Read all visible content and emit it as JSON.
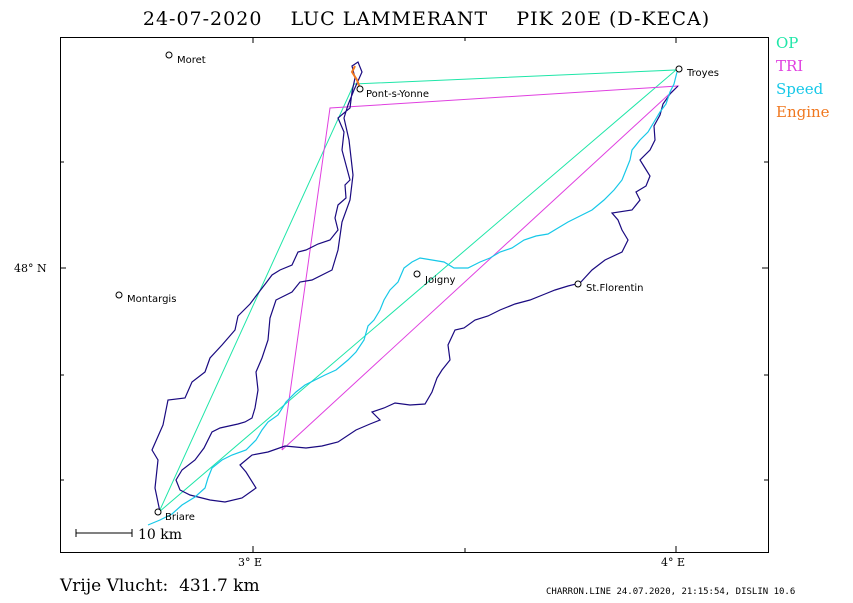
{
  "header": {
    "date": "24-07-2020",
    "pilot": "LUC LAMMERANT",
    "glider": "PIK 20E (D-KECA)"
  },
  "legend": [
    {
      "label": "OP",
      "color": "#1fe6a8"
    },
    {
      "label": "TRI",
      "color": "#e040e0"
    },
    {
      "label": "Speed",
      "color": "#16c8e8"
    },
    {
      "label": "Engine",
      "color": "#f07820"
    }
  ],
  "colors": {
    "track": "#1a0a80",
    "frame": "#000000"
  },
  "towns": [
    {
      "name": "Moret"
    },
    {
      "name": "Pont-s-Yonne"
    },
    {
      "name": "Troyes"
    },
    {
      "name": "Montargis"
    },
    {
      "name": "Joigny"
    },
    {
      "name": "St.Florentin"
    },
    {
      "name": "Briare"
    }
  ],
  "axes": {
    "x_label_1": "3° E",
    "x_label_2": "4° E",
    "y_label": "48° N"
  },
  "scale": {
    "label": "10 km"
  },
  "footer": {
    "distance_label": "Vrije Vlucht:",
    "distance_value": "431.7 km",
    "program": "CHARRON.LINE 24.07.2020, 21:15:54, DISLIN 10.6"
  }
}
